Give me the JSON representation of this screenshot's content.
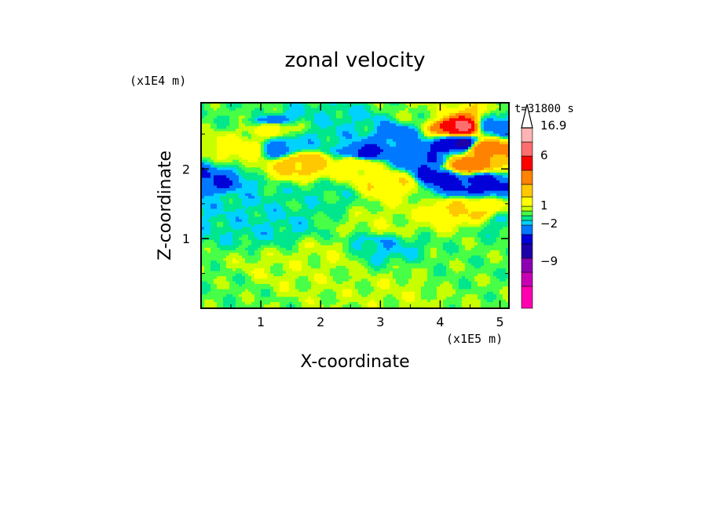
{
  "chart_data": {
    "type": "heatmap",
    "title": "zonal velocity",
    "xlabel": "X-coordinate",
    "ylabel": "Z-coordinate",
    "x_unit": "(x1E5 m)",
    "y_unit": "(x1E4 m)",
    "time_label": "t=31800 s",
    "xlim": [
      0,
      5.15
    ],
    "ylim": [
      0,
      2.95
    ],
    "x_ticks": [
      "1",
      "2",
      "3",
      "4",
      "5"
    ],
    "y_ticks": [
      "1",
      "2"
    ],
    "colorbar": {
      "labels": [
        "16.9",
        "6",
        "1",
        "-2",
        "-9"
      ],
      "levels": [
        -15,
        -12,
        -9,
        -6,
        -4,
        -2,
        -1,
        0,
        1,
        2,
        4,
        6,
        9,
        12,
        16.9
      ],
      "colors": [
        "#ff00b0",
        "#c800b4",
        "#8c00b4",
        "#1e00a8",
        "#0000d8",
        "#0078ff",
        "#00d2ff",
        "#00e68c",
        "#46ff46",
        "#c8ff00",
        "#ffff00",
        "#ffc800",
        "#ff8200",
        "#ff0000",
        "#ff6e6e",
        "#ffb4b4"
      ],
      "extend_max": true
    },
    "field_regions": [
      {
        "x": 0.0,
        "z": 1.8,
        "v": -4
      },
      {
        "x": 0.5,
        "z": 1.5,
        "v": -1
      },
      {
        "x": 0.8,
        "z": 2.3,
        "v": 3
      },
      {
        "x": 1.0,
        "z": 2.8,
        "v": 0.5
      },
      {
        "x": 1.2,
        "z": 2.6,
        "v": 3
      },
      {
        "x": 1.2,
        "z": 1.2,
        "v": -1
      },
      {
        "x": 1.3,
        "z": 0.5,
        "v": 1.5
      },
      {
        "x": 1.7,
        "z": 2.1,
        "v": 5
      },
      {
        "x": 1.3,
        "z": 2.3,
        "v": -3
      },
      {
        "x": 1.2,
        "z": 2.7,
        "v": -3
      },
      {
        "x": 2.0,
        "z": 2.4,
        "v": -1
      },
      {
        "x": 2.0,
        "z": 1.6,
        "v": -0.5
      },
      {
        "x": 2.2,
        "z": 0.8,
        "v": 1.5
      },
      {
        "x": 2.6,
        "z": 2.1,
        "v": 4
      },
      {
        "x": 2.7,
        "z": 2.6,
        "v": -1
      },
      {
        "x": 2.7,
        "z": 2.2,
        "v": -5
      },
      {
        "x": 3.0,
        "z": 1.2,
        "v": 1.5
      },
      {
        "x": 3.2,
        "z": 1.8,
        "v": 3.5
      },
      {
        "x": 3.2,
        "z": 2.5,
        "v": -3
      },
      {
        "x": 2.9,
        "z": 0.9,
        "v": -1.5
      },
      {
        "x": 3.8,
        "z": 2.1,
        "v": -4
      },
      {
        "x": 3.7,
        "z": 2.8,
        "v": 1
      },
      {
        "x": 4.0,
        "z": 1.9,
        "v": -5
      },
      {
        "x": 4.35,
        "z": 2.35,
        "v": -7
      },
      {
        "x": 4.35,
        "z": 2.6,
        "v": 12
      },
      {
        "x": 4.4,
        "z": 2.05,
        "v": 8
      },
      {
        "x": 4.6,
        "z": 1.8,
        "v": -5
      },
      {
        "x": 4.7,
        "z": 2.3,
        "v": 8
      },
      {
        "x": 4.9,
        "z": 2.6,
        "v": -3
      },
      {
        "x": 4.5,
        "z": 1.4,
        "v": 4
      },
      {
        "x": 4.8,
        "z": 0.8,
        "v": 0.5
      },
      {
        "x": 4.0,
        "z": 0.4,
        "v": 0.5
      },
      {
        "x": 0.5,
        "z": 0.3,
        "v": 0.5
      },
      {
        "x": 3.5,
        "z": 0.3,
        "v": 1.5
      },
      {
        "x": 5.1,
        "z": 1.2,
        "v": -0.5
      }
    ]
  }
}
